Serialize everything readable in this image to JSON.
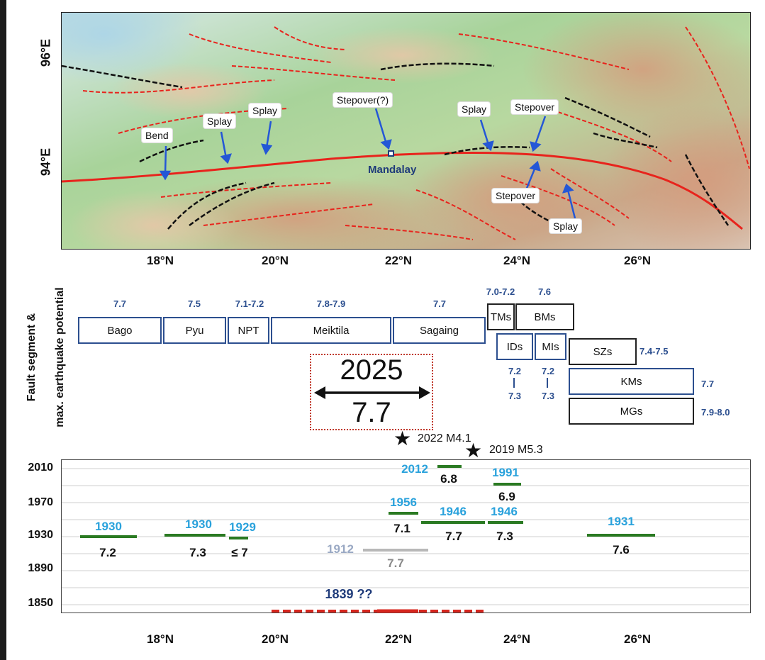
{
  "map": {
    "lon_ticks": [
      "96°E",
      "94°E"
    ],
    "city": "Mandalay",
    "callouts": {
      "bend": "Bend",
      "splay1": "Splay",
      "splay2": "Splay",
      "stepover_q": "Stepover(?)",
      "splay3": "Splay",
      "stepover1": "Stepover",
      "stepover2": "Stepover",
      "splay4": "Splay"
    }
  },
  "lat_ticks": [
    "18°N",
    "20°N",
    "22°N",
    "24°N",
    "26°N"
  ],
  "segments_panel": {
    "ylabel_line1": "Fault segment &",
    "ylabel_line2": "max. earthquake potential",
    "segments": {
      "bago": {
        "name": "Bago",
        "mag": "7.7"
      },
      "pyu": {
        "name": "Pyu",
        "mag": "7.5"
      },
      "npt": {
        "name": "NPT",
        "mag": "7.1-7.2"
      },
      "meiktila": {
        "name": "Meiktila",
        "mag": "7.8-7.9"
      },
      "sagaing": {
        "name": "Sagaing",
        "mag": "7.7"
      },
      "tms": {
        "name": "TMs",
        "mag": "7.0-7.2"
      },
      "bms": {
        "name": "BMs",
        "mag": "7.6"
      },
      "ids": {
        "name": "IDs",
        "mag_a": "7.2",
        "mag_b": "7.3"
      },
      "mls": {
        "name": "MIs",
        "mag_a": "7.2",
        "mag_b": "7.3"
      },
      "szs": {
        "name": "SZs",
        "mag": "7.4-7.5"
      },
      "kms": {
        "name": "KMs",
        "mag": "7.7"
      },
      "mgs": {
        "name": "MGs",
        "mag": "7.9-8.0"
      }
    },
    "event_2025": {
      "year": "2025",
      "mag": "7.7"
    },
    "stars": {
      "s2022": "2022 M4.1",
      "s2019": "2019 M5.3"
    }
  },
  "timeline": {
    "y_ticks": [
      "2010",
      "1970",
      "1930",
      "1890",
      "1850"
    ],
    "events": {
      "e1930a": {
        "year": "1930",
        "mag": "7.2"
      },
      "e1930b": {
        "year": "1930",
        "mag": "7.3"
      },
      "e1929": {
        "year": "1929",
        "mag": "≤ 7"
      },
      "e1912": {
        "year": "1912",
        "mag": "7.7"
      },
      "e1839": {
        "year": "1839 ??"
      },
      "e1956": {
        "year": "1956",
        "mag": "7.1"
      },
      "e2012": {
        "year": "2012",
        "mag": "6.8"
      },
      "e1946a": {
        "year": "1946",
        "mag": "7.7"
      },
      "e1946b": {
        "year": "1946",
        "mag": "7.3"
      },
      "e1991": {
        "year": "1991",
        "mag": "6.9"
      },
      "e1931": {
        "year": "1931",
        "mag": "7.6"
      }
    }
  },
  "colors": {
    "fault_red": "#e8231c",
    "fault_black": "#111111",
    "arrow_blue": "#2457d6",
    "box_blue": "#2c4f8f",
    "year_cyan": "#2aa2dc",
    "bar_green": "#2a7a22",
    "historic_gray": "#9aa9c4",
    "dashed_red": "#d7261e",
    "navy": "#1f3b7a"
  }
}
